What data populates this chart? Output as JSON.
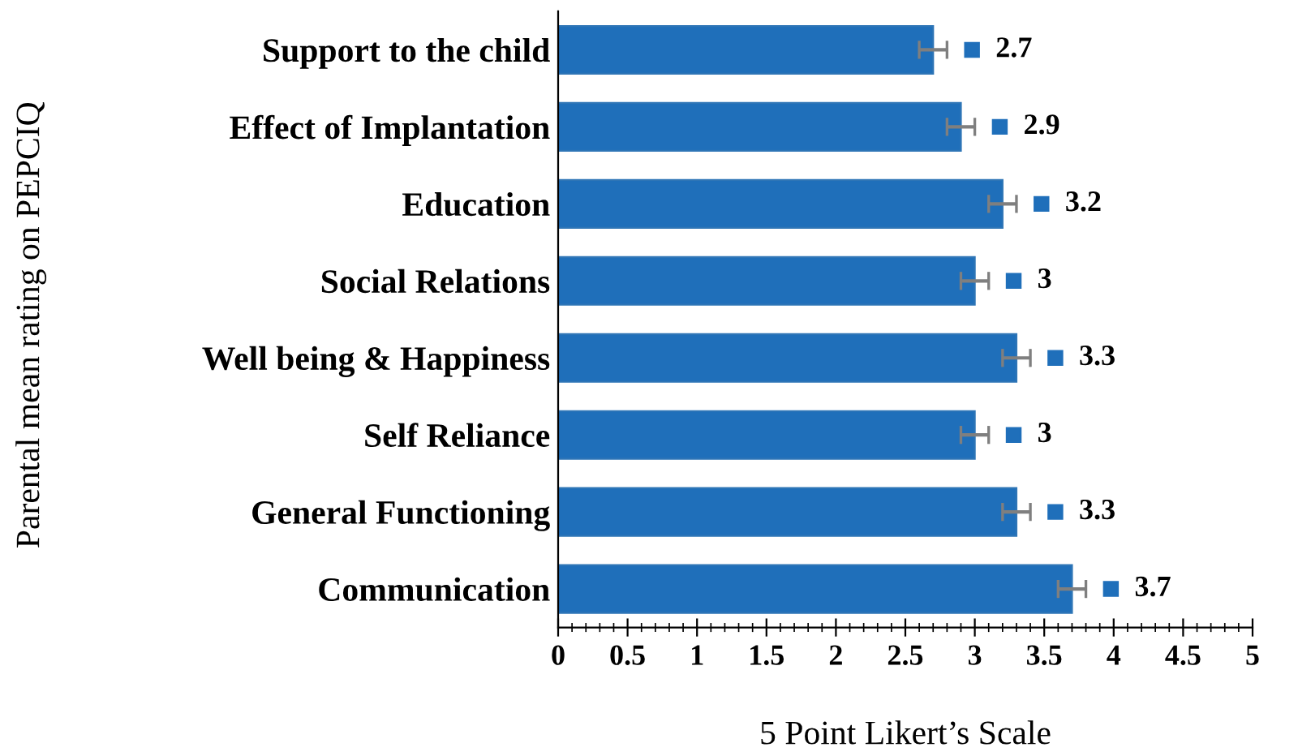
{
  "chart_data": {
    "type": "bar",
    "orientation": "horizontal",
    "xlabel": "5 Point Likert’s Scale",
    "ylabel": "Parental mean rating on PEPCIQ",
    "categories": [
      "Support to the child",
      "Effect of Implantation",
      "Education",
      "Social Relations",
      "Well being & Happiness",
      "Self Reliance",
      "General Functioning",
      "Communication"
    ],
    "values": [
      2.7,
      2.9,
      3.2,
      3,
      3.3,
      3,
      3.3,
      3.7
    ],
    "errors": [
      0.1,
      0.1,
      0.1,
      0.1,
      0.1,
      0.1,
      0.1,
      0.1
    ],
    "color": "#1f6fba",
    "xlim": [
      0,
      5
    ],
    "xticks": [
      0,
      0.5,
      1,
      1.5,
      2,
      2.5,
      3,
      3.5,
      4,
      4.5,
      5
    ],
    "data_labels": true,
    "grid": false,
    "legend": false
  }
}
